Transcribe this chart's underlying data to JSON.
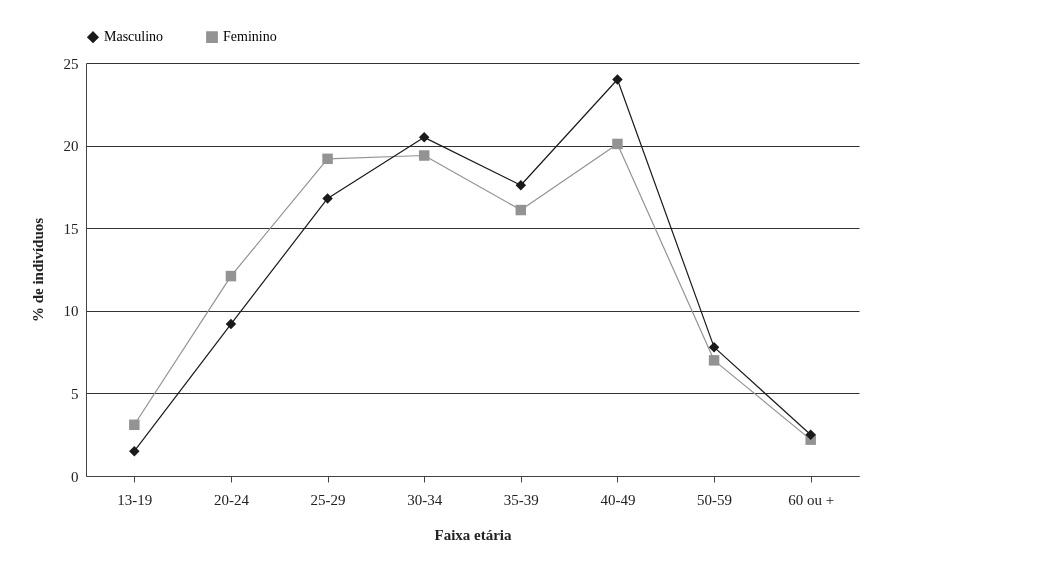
{
  "chart_data": {
    "type": "line",
    "xlabel": "Faixa etária",
    "ylabel": "% de indivíduos",
    "categories": [
      "13-19",
      "20-24",
      "25-29",
      "30-34",
      "35-39",
      "40-49",
      "50-59",
      "60 ou +"
    ],
    "series": [
      {
        "name": "Masculino",
        "color": "#1a1a1a",
        "marker": "diamond",
        "values": [
          1.5,
          9.2,
          16.8,
          20.5,
          17.6,
          24.0,
          7.8,
          2.5
        ]
      },
      {
        "name": "Feminino",
        "color": "#939393",
        "marker": "square",
        "values": [
          3.1,
          12.1,
          19.2,
          19.4,
          16.1,
          20.1,
          7.0,
          2.2
        ]
      }
    ],
    "ylim": [
      0,
      25
    ],
    "yticks": [
      0,
      5,
      10,
      15,
      20,
      25
    ],
    "grid": "y",
    "legend": "top",
    "line_style": "solid"
  }
}
